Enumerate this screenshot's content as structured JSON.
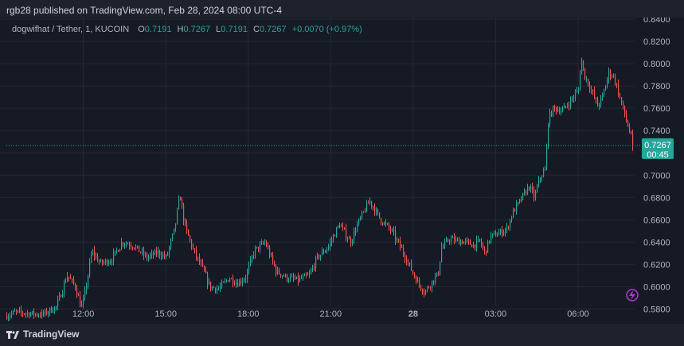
{
  "header": {
    "published_text": "rgb28 published on TradingView.com, Feb 28, 2024 08:00 UTC-4"
  },
  "legend": {
    "symbol": "dogwifhat / Tether, 1, KUCOIN",
    "o_label": "O",
    "o_value": "0.7191",
    "h_label": "H",
    "h_value": "0.7267",
    "l_label": "L",
    "l_value": "0.7191",
    "c_label": "C",
    "c_value": "0.7267",
    "change": "+0.0070 (+0.97%)"
  },
  "price_tag": {
    "price": "0.7267",
    "countdown": "00:45"
  },
  "footer": {
    "brand": "TradingView"
  },
  "colors": {
    "up": "#26a69a",
    "down": "#ef5350",
    "background": "#161a25",
    "grid": "#242835",
    "axis_text": "#b2b5be",
    "flash_icon": "#b23ad4"
  },
  "icons": {
    "footer_logo": "tradingview-logo-icon",
    "flash": "lightning-bolt-icon"
  },
  "chart_data": {
    "type": "candlestick",
    "title": "dogwifhat / Tether, 1, KUCOIN",
    "interval": "1",
    "ylim": [
      0.57,
      0.84
    ],
    "y_ticks": [
      "0.8400",
      "0.8200",
      "0.8000",
      "0.7800",
      "0.7600",
      "0.7400",
      "0.7200",
      "0.7000",
      "0.6800",
      "0.6600",
      "0.6400",
      "0.6200",
      "0.6000",
      "0.5800"
    ],
    "x_ticks": [
      {
        "label": "12:00",
        "hour": 12,
        "bold": false
      },
      {
        "label": "15:00",
        "hour": 15,
        "bold": false
      },
      {
        "label": "18:00",
        "hour": 18,
        "bold": false
      },
      {
        "label": "21:00",
        "hour": 21,
        "bold": false
      },
      {
        "label": "28",
        "hour": 24,
        "bold": true
      },
      {
        "label": "03:00",
        "hour": 27,
        "bold": false
      },
      {
        "label": "06:00",
        "hour": 30,
        "bold": false
      }
    ],
    "x_range_hours": [
      9.2,
      32.0
    ],
    "last_price": 0.7267,
    "grid": true,
    "price_path": [
      [
        9.2,
        0.574
      ],
      [
        9.5,
        0.577
      ],
      [
        10.0,
        0.576
      ],
      [
        10.5,
        0.575
      ],
      [
        11.0,
        0.582
      ],
      [
        11.4,
        0.61
      ],
      [
        11.7,
        0.6
      ],
      [
        11.9,
        0.582
      ],
      [
        12.0,
        0.588
      ],
      [
        12.3,
        0.632
      ],
      [
        12.6,
        0.621
      ],
      [
        13.0,
        0.624
      ],
      [
        13.4,
        0.64
      ],
      [
        13.8,
        0.637
      ],
      [
        14.3,
        0.626
      ],
      [
        14.7,
        0.631
      ],
      [
        15.0,
        0.626
      ],
      [
        15.3,
        0.651
      ],
      [
        15.5,
        0.682
      ],
      [
        15.7,
        0.652
      ],
      [
        16.0,
        0.632
      ],
      [
        16.3,
        0.617
      ],
      [
        16.6,
        0.6
      ],
      [
        16.9,
        0.598
      ],
      [
        17.3,
        0.608
      ],
      [
        17.6,
        0.603
      ],
      [
        17.9,
        0.609
      ],
      [
        18.2,
        0.632
      ],
      [
        18.6,
        0.64
      ],
      [
        19.0,
        0.614
      ],
      [
        19.4,
        0.608
      ],
      [
        19.8,
        0.606
      ],
      [
        20.2,
        0.61
      ],
      [
        20.5,
        0.626
      ],
      [
        20.9,
        0.636
      ],
      [
        21.3,
        0.656
      ],
      [
        21.7,
        0.64
      ],
      [
        22.0,
        0.658
      ],
      [
        22.4,
        0.677
      ],
      [
        22.8,
        0.66
      ],
      [
        23.2,
        0.65
      ],
      [
        23.6,
        0.632
      ],
      [
        24.0,
        0.611
      ],
      [
        24.2,
        0.602
      ],
      [
        24.4,
        0.595
      ],
      [
        24.6,
        0.602
      ],
      [
        24.9,
        0.612
      ],
      [
        25.0,
        0.634
      ],
      [
        25.3,
        0.643
      ],
      [
        25.6,
        0.641
      ],
      [
        25.9,
        0.64
      ],
      [
        26.2,
        0.637
      ],
      [
        26.4,
        0.641
      ],
      [
        26.6,
        0.63
      ],
      [
        26.8,
        0.645
      ],
      [
        27.1,
        0.648
      ],
      [
        27.4,
        0.652
      ],
      [
        27.6,
        0.666
      ],
      [
        27.9,
        0.678
      ],
      [
        28.2,
        0.69
      ],
      [
        28.4,
        0.68
      ],
      [
        28.6,
        0.698
      ],
      [
        28.8,
        0.705
      ],
      [
        28.9,
        0.75
      ],
      [
        29.1,
        0.76
      ],
      [
        29.4,
        0.758
      ],
      [
        29.7,
        0.766
      ],
      [
        30.0,
        0.777
      ],
      [
        30.1,
        0.805
      ],
      [
        30.2,
        0.791
      ],
      [
        30.4,
        0.78
      ],
      [
        30.7,
        0.762
      ],
      [
        30.9,
        0.772
      ],
      [
        31.1,
        0.792
      ],
      [
        31.3,
        0.788
      ],
      [
        31.5,
        0.77
      ],
      [
        31.8,
        0.744
      ],
      [
        32.0,
        0.7267
      ]
    ]
  }
}
